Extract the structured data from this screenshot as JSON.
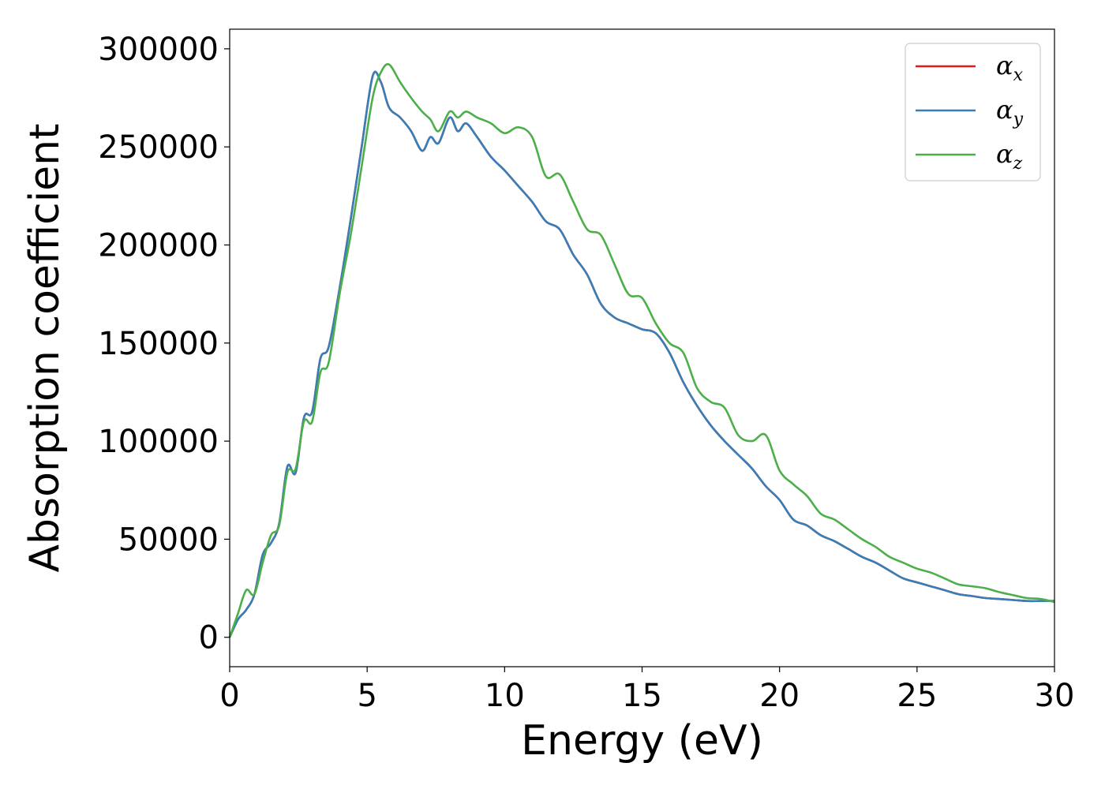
{
  "chart_data": {
    "type": "line",
    "title": "",
    "xlabel": "Energy (eV)",
    "ylabel": "Absorption coefficient",
    "xlim": [
      0,
      30
    ],
    "ylim": [
      -15000,
      310000
    ],
    "xticks": [
      0,
      5,
      10,
      15,
      20,
      25,
      30
    ],
    "yticks": [
      0,
      50000,
      100000,
      150000,
      200000,
      250000,
      300000
    ],
    "xtick_labels": [
      "0",
      "5",
      "10",
      "15",
      "20",
      "25",
      "30"
    ],
    "ytick_labels": [
      "0",
      "50000",
      "100000",
      "150000",
      "200000",
      "250000",
      "300000"
    ],
    "grid": false,
    "legend_position": "top-right",
    "series": [
      {
        "name": "αx",
        "symbol": "α",
        "subscript": "x",
        "color": "#e41a1c",
        "x": [
          0,
          0.3,
          0.6,
          0.9,
          1.2,
          1.5,
          1.8,
          2.1,
          2.4,
          2.7,
          3.0,
          3.3,
          3.6,
          4.0,
          4.4,
          4.8,
          5.2,
          5.5,
          5.8,
          6.2,
          6.6,
          7.0,
          7.3,
          7.6,
          8.0,
          8.3,
          8.6,
          9.0,
          9.5,
          10.0,
          10.5,
          11.0,
          11.5,
          12.0,
          12.5,
          13.0,
          13.5,
          14.0,
          14.5,
          15.0,
          15.5,
          16.0,
          16.5,
          17.0,
          17.5,
          18.0,
          18.5,
          19.0,
          19.5,
          20.0,
          20.5,
          21.0,
          21.5,
          22.0,
          22.5,
          23.0,
          23.5,
          24.0,
          24.5,
          25.0,
          25.5,
          26.0,
          26.5,
          27.0,
          27.5,
          28.0,
          28.5,
          29.0,
          29.5,
          30.0
        ],
        "y": [
          0,
          9000,
          14000,
          22000,
          42000,
          48000,
          58000,
          87000,
          84000,
          112000,
          115000,
          142000,
          148000,
          178000,
          213000,
          250000,
          286000,
          283000,
          270000,
          265000,
          258000,
          248000,
          255000,
          252000,
          265000,
          258000,
          262000,
          255000,
          245000,
          238000,
          230000,
          222000,
          212000,
          208000,
          195000,
          185000,
          170000,
          163000,
          160000,
          157000,
          155000,
          145000,
          130000,
          118000,
          108000,
          100000,
          93000,
          86000,
          77000,
          70000,
          60000,
          57000,
          52000,
          49000,
          45000,
          41000,
          38000,
          34000,
          30000,
          28000,
          26000,
          24000,
          22000,
          21000,
          20000,
          19500,
          19000,
          18500,
          18500,
          18500
        ]
      },
      {
        "name": "αy",
        "symbol": "α",
        "subscript": "y",
        "color": "#377eb8",
        "x": [
          0,
          0.3,
          0.6,
          0.9,
          1.2,
          1.5,
          1.8,
          2.1,
          2.4,
          2.7,
          3.0,
          3.3,
          3.6,
          4.0,
          4.4,
          4.8,
          5.2,
          5.5,
          5.8,
          6.2,
          6.6,
          7.0,
          7.3,
          7.6,
          8.0,
          8.3,
          8.6,
          9.0,
          9.5,
          10.0,
          10.5,
          11.0,
          11.5,
          12.0,
          12.5,
          13.0,
          13.5,
          14.0,
          14.5,
          15.0,
          15.5,
          16.0,
          16.5,
          17.0,
          17.5,
          18.0,
          18.5,
          19.0,
          19.5,
          20.0,
          20.5,
          21.0,
          21.5,
          22.0,
          22.5,
          23.0,
          23.5,
          24.0,
          24.5,
          25.0,
          25.5,
          26.0,
          26.5,
          27.0,
          27.5,
          28.0,
          28.5,
          29.0,
          29.5,
          30.0
        ],
        "y": [
          0,
          9000,
          14000,
          22000,
          42000,
          48000,
          58000,
          87000,
          84000,
          112000,
          115000,
          142000,
          148000,
          178000,
          213000,
          250000,
          286000,
          283000,
          270000,
          265000,
          258000,
          248000,
          255000,
          252000,
          265000,
          258000,
          262000,
          255000,
          245000,
          238000,
          230000,
          222000,
          212000,
          208000,
          195000,
          185000,
          170000,
          163000,
          160000,
          157000,
          155000,
          145000,
          130000,
          118000,
          108000,
          100000,
          93000,
          86000,
          77000,
          70000,
          60000,
          57000,
          52000,
          49000,
          45000,
          41000,
          38000,
          34000,
          30000,
          28000,
          26000,
          24000,
          22000,
          21000,
          20000,
          19500,
          19000,
          18500,
          18500,
          18500
        ]
      },
      {
        "name": "αz",
        "symbol": "α",
        "subscript": "z",
        "color": "#4daf4a",
        "x": [
          0,
          0.3,
          0.6,
          0.9,
          1.2,
          1.5,
          1.8,
          2.1,
          2.4,
          2.7,
          3.0,
          3.3,
          3.6,
          4.0,
          4.4,
          4.8,
          5.2,
          5.5,
          5.8,
          6.2,
          6.6,
          7.0,
          7.3,
          7.6,
          8.0,
          8.3,
          8.6,
          9.0,
          9.5,
          10.0,
          10.5,
          11.0,
          11.5,
          12.0,
          12.5,
          13.0,
          13.5,
          14.0,
          14.5,
          15.0,
          15.5,
          16.0,
          16.5,
          17.0,
          17.5,
          18.0,
          18.5,
          19.0,
          19.5,
          20.0,
          20.5,
          21.0,
          21.5,
          22.0,
          22.5,
          23.0,
          23.5,
          24.0,
          24.5,
          25.0,
          25.5,
          26.0,
          26.5,
          27.0,
          27.5,
          28.0,
          28.5,
          29.0,
          29.5,
          30.0
        ],
        "y": [
          0,
          12000,
          24000,
          22000,
          38000,
          52000,
          57000,
          84000,
          86000,
          110000,
          110000,
          135000,
          140000,
          175000,
          205000,
          240000,
          275000,
          288000,
          292000,
          283000,
          275000,
          268000,
          264000,
          258000,
          268000,
          265000,
          268000,
          265000,
          262000,
          257000,
          260000,
          255000,
          235000,
          236000,
          222000,
          208000,
          205000,
          190000,
          175000,
          173000,
          160000,
          150000,
          145000,
          127000,
          120000,
          117000,
          103000,
          100000,
          103000,
          85000,
          78000,
          72000,
          63000,
          60000,
          55000,
          50000,
          46000,
          41000,
          38000,
          35000,
          33000,
          30000,
          27000,
          26000,
          25000,
          23000,
          21500,
          20000,
          19500,
          18000
        ]
      }
    ]
  }
}
